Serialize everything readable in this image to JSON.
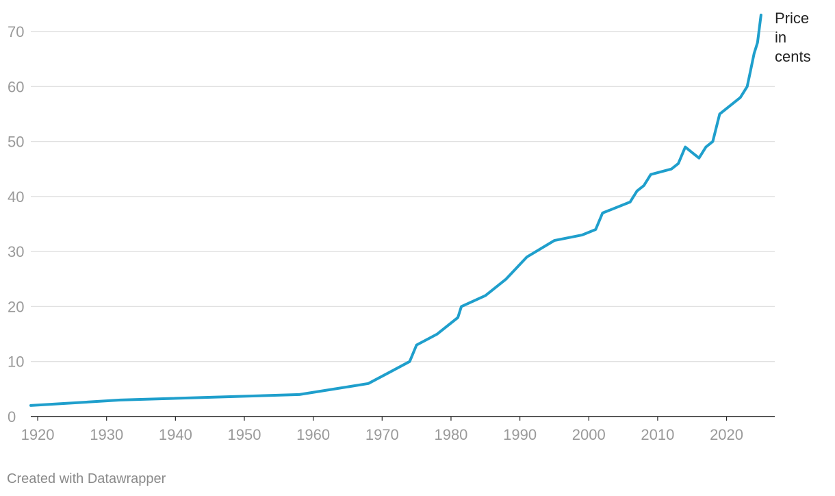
{
  "chart_data": {
    "type": "line",
    "title": "",
    "xlabel": "",
    "ylabel": "",
    "xlim": [
      1919,
      2027
    ],
    "ylim": [
      0,
      70
    ],
    "grid": true,
    "x_ticks": [
      1920,
      1930,
      1940,
      1950,
      1960,
      1970,
      1980,
      1990,
      2000,
      2010,
      2020
    ],
    "y_ticks": [
      0,
      10,
      20,
      30,
      40,
      50,
      60,
      70
    ],
    "series": [
      {
        "name": "Price in cents",
        "label_lines": [
          "Price",
          "in",
          "cents"
        ],
        "color": "#1f9fcc",
        "x": [
          1919,
          1932,
          1958,
          1963,
          1968,
          1971,
          1974,
          1975,
          1978,
          1981,
          1981.5,
          1985,
          1988,
          1991,
          1995,
          1999,
          2001,
          2002,
          2006,
          2007,
          2008,
          2009,
          2012,
          2013,
          2014,
          2016,
          2017,
          2018,
          2019,
          2022,
          2023,
          2023.5,
          2024,
          2024.5,
          2025
        ],
        "values": [
          2,
          3,
          4,
          5,
          6,
          8,
          10,
          13,
          15,
          18,
          20,
          22,
          25,
          29,
          32,
          33,
          34,
          37,
          39,
          41,
          42,
          44,
          45,
          46,
          49,
          47,
          49,
          50,
          55,
          58,
          60,
          63,
          66,
          68,
          73
        ]
      }
    ]
  },
  "footer": {
    "credit": "Created with Datawrapper"
  }
}
